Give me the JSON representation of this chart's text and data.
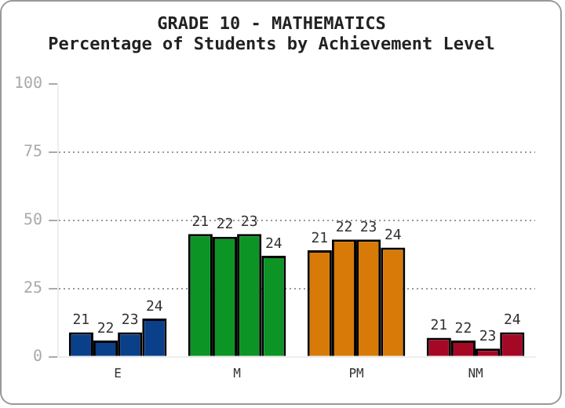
{
  "chart_data": {
    "type": "bar",
    "title": "GRADE 10 - MATHEMATICS",
    "subtitle": "Percentage of Students by Achievement Level",
    "categories": [
      "E",
      "M",
      "PM",
      "NM"
    ],
    "series": [
      {
        "name": "21",
        "colors": [
          "#0a3f8a",
          "#0c9425",
          "#d77a08",
          "#a50824"
        ],
        "values": [
          9,
          45,
          39,
          7
        ]
      },
      {
        "name": "22",
        "colors": [
          "#0a3f8a",
          "#0c9425",
          "#d77a08",
          "#a50824"
        ],
        "values": [
          6,
          44,
          43,
          6
        ]
      },
      {
        "name": "23",
        "colors": [
          "#0a3f8a",
          "#0c9425",
          "#d77a08",
          "#a50824"
        ],
        "values": [
          9,
          45,
          43,
          3
        ]
      },
      {
        "name": "24",
        "colors": [
          "#0a3f8a",
          "#0c9425",
          "#d77a08",
          "#a50824"
        ],
        "values": [
          14,
          37,
          40,
          9
        ]
      }
    ],
    "ylim": [
      0,
      100
    ],
    "yticks": [
      0,
      25,
      50,
      75,
      100
    ],
    "grid": "y",
    "legend": false
  }
}
